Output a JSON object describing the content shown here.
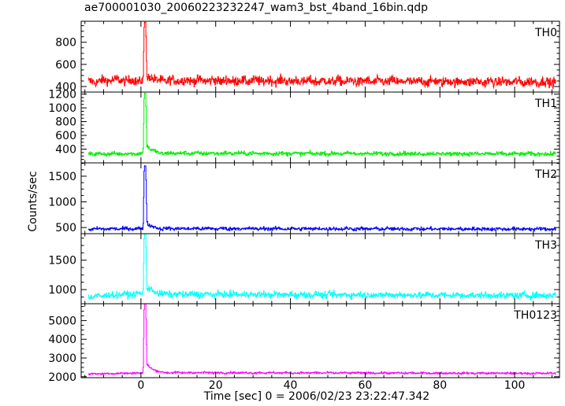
{
  "chart_data": {
    "type": "line",
    "title": "ae700001030_20060223232247_wam3_bst_4band_16bin.qdp",
    "xlabel": "Time [sec] 0 = 2006/02/23 23:22:47.342",
    "ylabel": "Counts/sec",
    "xlim": [
      -16,
      112
    ],
    "x_ticks": [
      0,
      20,
      40,
      60,
      80,
      100
    ],
    "x_tick_labels": [
      "0",
      "20",
      "40",
      "60",
      "80",
      "100"
    ],
    "x_range": [
      -14,
      111
    ],
    "burst_time": 1.0,
    "panels": [
      {
        "name": "TH0",
        "color": "#ff0000",
        "ylim": [
          350,
          990
        ],
        "yticks": [
          400,
          600,
          800
        ],
        "baseline": 450,
        "noise": 35,
        "profile": [
          [
            -14,
            440
          ],
          [
            -8,
            460
          ],
          [
            0,
            450
          ],
          [
            0.6,
            450
          ],
          [
            0.9,
            980
          ],
          [
            1.3,
            980
          ],
          [
            1.6,
            460
          ],
          [
            2.2,
            500
          ],
          [
            4,
            455
          ],
          [
            111,
            440
          ]
        ]
      },
      {
        "name": "TH1",
        "color": "#00ee00",
        "ylim": [
          200,
          1230
        ],
        "yticks": [
          400,
          600,
          800,
          1000,
          1200
        ],
        "baseline": 330,
        "noise": 25,
        "profile": [
          [
            -14,
            330
          ],
          [
            0,
            335
          ],
          [
            0.6,
            340
          ],
          [
            0.9,
            1210
          ],
          [
            1.3,
            1210
          ],
          [
            1.6,
            460
          ],
          [
            2.5,
            400
          ],
          [
            5,
            340
          ],
          [
            111,
            330
          ]
        ]
      },
      {
        "name": "TH2",
        "color": "#0000ff",
        "ylim": [
          380,
          1760
        ],
        "yticks": [
          500,
          1000,
          1500
        ],
        "baseline": 480,
        "noise": 30,
        "profile": [
          [
            -14,
            470
          ],
          [
            0,
            480
          ],
          [
            0.6,
            480
          ],
          [
            0.9,
            1700
          ],
          [
            1.3,
            1700
          ],
          [
            1.6,
            600
          ],
          [
            2.5,
            530
          ],
          [
            5,
            480
          ],
          [
            111,
            470
          ]
        ]
      },
      {
        "name": "TH3",
        "color": "#00ffff",
        "ylim": [
          760,
          1950
        ],
        "yticks": [
          1000,
          1500
        ],
        "baseline": 920,
        "noise": 45,
        "profile": [
          [
            -14,
            870
          ],
          [
            -10,
            900
          ],
          [
            0,
            930
          ],
          [
            0.6,
            930
          ],
          [
            0.9,
            1950
          ],
          [
            1.3,
            1950
          ],
          [
            1.6,
            1030
          ],
          [
            3,
            980
          ],
          [
            6,
            920
          ],
          [
            111,
            900
          ]
        ]
      },
      {
        "name": "TH0123",
        "color": "#ff00ff",
        "ylim": [
          1950,
          5900
        ],
        "yticks": [
          2000,
          3000,
          4000,
          5000
        ],
        "baseline": 2180,
        "noise": 50,
        "profile": [
          [
            -14,
            2150
          ],
          [
            0,
            2200
          ],
          [
            0.6,
            2200
          ],
          [
            0.9,
            5900
          ],
          [
            1.3,
            5900
          ],
          [
            1.6,
            2650
          ],
          [
            3,
            2400
          ],
          [
            6,
            2220
          ],
          [
            111,
            2180
          ]
        ]
      }
    ]
  }
}
